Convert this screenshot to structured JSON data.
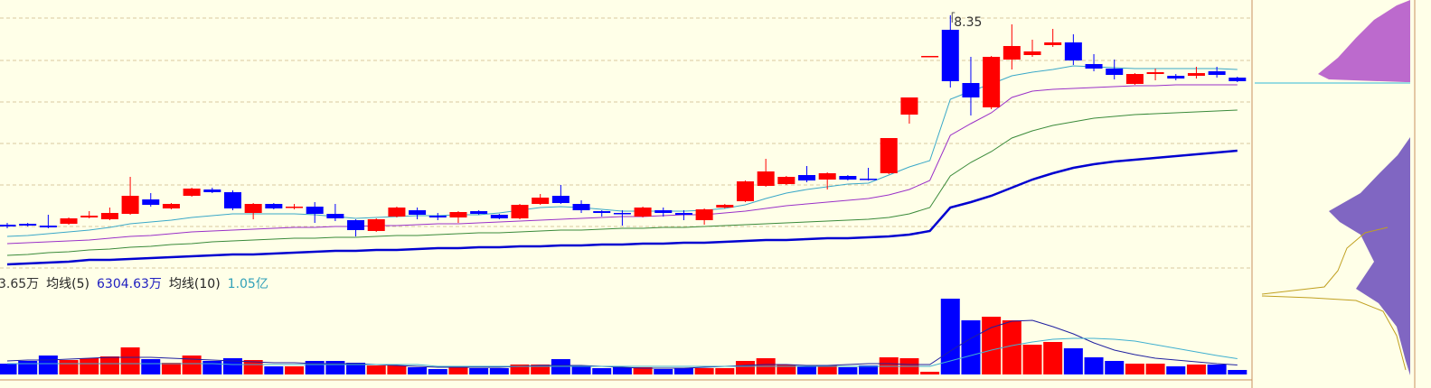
{
  "chart_data": {
    "type": "candlestick",
    "up_color": "#ff0000",
    "down_color": "#0000ff",
    "ylim": [
      5.47,
      8.52
    ],
    "grid_lines": [
      8.32,
      7.85,
      7.39,
      6.93,
      6.47,
      6.01,
      5.55
    ],
    "open": [
      6.03,
      6.04,
      6.02,
      6.04,
      6.11,
      6.09,
      6.15,
      6.31,
      6.21,
      6.35,
      6.42,
      6.39,
      6.16,
      6.26,
      6.22,
      6.23,
      6.15,
      6.08,
      5.96,
      6.12,
      6.19,
      6.13,
      6.11,
      6.18,
      6.14,
      6.1,
      6.26,
      6.35,
      6.26,
      6.18,
      6.16,
      6.12,
      6.19,
      6.16,
      6.08,
      6.22,
      6.29,
      6.46,
      6.48,
      6.58,
      6.53,
      6.57,
      6.54,
      6.6,
      7.25,
      7.9,
      8.19,
      7.6,
      7.33,
      7.86,
      7.91,
      8.02,
      8.05,
      7.81,
      7.76,
      7.59,
      7.7,
      7.68,
      7.68,
      7.73,
      7.66
    ],
    "high": [
      6.05,
      6.05,
      6.14,
      6.11,
      6.18,
      6.22,
      6.56,
      6.38,
      6.27,
      6.44,
      6.44,
      6.41,
      6.27,
      6.27,
      6.26,
      6.28,
      6.26,
      6.09,
      6.1,
      6.23,
      6.22,
      6.16,
      6.18,
      6.19,
      6.15,
      6.26,
      6.37,
      6.47,
      6.3,
      6.19,
      6.19,
      6.23,
      6.22,
      6.19,
      6.21,
      6.26,
      6.52,
      6.76,
      6.57,
      6.68,
      6.61,
      6.58,
      6.66,
      6.99,
      7.44,
      7.9,
      8.35,
      7.89,
      7.9,
      8.25,
      8.08,
      8.2,
      8.14,
      7.92,
      7.86,
      7.71,
      7.76,
      7.7,
      7.78,
      7.78,
      7.67
    ],
    "low": [
      5.99,
      6.01,
      5.99,
      6.03,
      6.1,
      6.08,
      6.14,
      6.23,
      6.2,
      6.34,
      6.38,
      6.19,
      6.09,
      6.2,
      6.2,
      6.05,
      6.07,
      5.9,
      5.95,
      6.11,
      6.09,
      6.08,
      6.05,
      6.14,
      6.09,
      6.09,
      6.25,
      6.26,
      6.16,
      6.12,
      6.02,
      6.11,
      6.12,
      6.08,
      6.03,
      6.21,
      6.28,
      6.45,
      6.47,
      6.5,
      6.42,
      6.52,
      6.52,
      6.59,
      7.15,
      7.9,
      7.55,
      7.24,
      7.31,
      7.75,
      7.89,
      8.0,
      7.8,
      7.73,
      7.64,
      7.58,
      7.63,
      7.63,
      7.65,
      7.66,
      7.61
    ],
    "close": [
      6.01,
      6.02,
      6.0,
      6.1,
      6.13,
      6.16,
      6.35,
      6.25,
      6.26,
      6.43,
      6.39,
      6.21,
      6.26,
      6.21,
      6.23,
      6.15,
      6.1,
      5.97,
      6.09,
      6.22,
      6.14,
      6.11,
      6.17,
      6.15,
      6.1,
      6.25,
      6.33,
      6.27,
      6.19,
      6.16,
      6.15,
      6.22,
      6.16,
      6.14,
      6.2,
      6.25,
      6.51,
      6.62,
      6.56,
      6.52,
      6.6,
      6.53,
      6.53,
      6.99,
      7.44,
      7.9,
      7.62,
      7.44,
      7.89,
      8.01,
      7.95,
      8.05,
      7.85,
      7.76,
      7.69,
      7.7,
      7.72,
      7.65,
      7.71,
      7.69,
      7.62
    ],
    "moving_averages": [
      {
        "color": "#3aa8c8",
        "width": 1,
        "values": [
          5.9,
          5.91,
          5.93,
          5.95,
          5.97,
          6.0,
          6.04,
          6.06,
          6.08,
          6.11,
          6.13,
          6.15,
          6.15,
          6.15,
          6.15,
          6.14,
          6.12,
          6.1,
          6.11,
          6.12,
          6.13,
          6.13,
          6.14,
          6.14,
          6.16,
          6.19,
          6.22,
          6.23,
          6.22,
          6.2,
          6.18,
          6.18,
          6.18,
          6.18,
          6.19,
          6.21,
          6.25,
          6.32,
          6.38,
          6.42,
          6.45,
          6.48,
          6.49,
          6.58,
          6.67,
          6.74,
          7.42,
          7.51,
          7.59,
          7.68,
          7.72,
          7.75,
          7.79,
          7.78,
          7.77,
          7.76,
          7.76,
          7.76,
          7.76,
          7.76,
          7.75
        ]
      },
      {
        "color": "#9a30c8",
        "width": 1,
        "values": [
          5.82,
          5.83,
          5.84,
          5.85,
          5.86,
          5.88,
          5.9,
          5.91,
          5.93,
          5.95,
          5.96,
          5.97,
          5.98,
          5.99,
          6.0,
          6.0,
          6.01,
          6.01,
          6.02,
          6.02,
          6.03,
          6.04,
          6.04,
          6.05,
          6.06,
          6.07,
          6.08,
          6.09,
          6.1,
          6.11,
          6.12,
          6.12,
          6.13,
          6.14,
          6.14,
          6.16,
          6.18,
          6.21,
          6.24,
          6.26,
          6.28,
          6.3,
          6.32,
          6.36,
          6.42,
          6.52,
          7.02,
          7.15,
          7.27,
          7.44,
          7.51,
          7.53,
          7.54,
          7.55,
          7.56,
          7.57,
          7.57,
          7.58,
          7.58,
          7.58,
          7.58
        ]
      },
      {
        "color": "#3a8a3a",
        "width": 1,
        "values": [
          5.69,
          5.7,
          5.72,
          5.73,
          5.75,
          5.76,
          5.78,
          5.79,
          5.81,
          5.82,
          5.84,
          5.85,
          5.86,
          5.87,
          5.88,
          5.88,
          5.89,
          5.89,
          5.9,
          5.91,
          5.91,
          5.92,
          5.93,
          5.94,
          5.94,
          5.95,
          5.96,
          5.97,
          5.97,
          5.98,
          5.99,
          5.99,
          6.0,
          6.0,
          6.01,
          6.02,
          6.03,
          6.04,
          6.05,
          6.06,
          6.07,
          6.08,
          6.09,
          6.11,
          6.15,
          6.22,
          6.57,
          6.72,
          6.84,
          6.99,
          7.07,
          7.13,
          7.17,
          7.21,
          7.23,
          7.25,
          7.26,
          7.27,
          7.28,
          7.29,
          7.3
        ]
      },
      {
        "color": "#0000d0",
        "width": 2.5,
        "values": [
          5.59,
          5.6,
          5.61,
          5.62,
          5.64,
          5.64,
          5.65,
          5.66,
          5.67,
          5.68,
          5.69,
          5.7,
          5.7,
          5.71,
          5.72,
          5.73,
          5.74,
          5.74,
          5.75,
          5.75,
          5.76,
          5.77,
          5.77,
          5.78,
          5.78,
          5.79,
          5.79,
          5.8,
          5.8,
          5.81,
          5.81,
          5.82,
          5.82,
          5.83,
          5.83,
          5.84,
          5.85,
          5.86,
          5.86,
          5.87,
          5.88,
          5.88,
          5.89,
          5.9,
          5.92,
          5.96,
          6.22,
          6.28,
          6.35,
          6.44,
          6.53,
          6.6,
          6.66,
          6.7,
          6.73,
          6.75,
          6.77,
          6.79,
          6.81,
          6.83,
          6.85
        ]
      }
    ],
    "volume": {
      "ylim": [
        0,
        54000
      ],
      "values": [
        7200,
        9000,
        12600,
        9600,
        10800,
        12000,
        18000,
        10200,
        7800,
        12600,
        9000,
        10800,
        9600,
        5400,
        5400,
        9000,
        9000,
        7800,
        6000,
        6000,
        4800,
        3600,
        4800,
        4200,
        4200,
        6600,
        6600,
        10200,
        5400,
        4200,
        4800,
        4800,
        3600,
        4200,
        4200,
        4200,
        9000,
        10800,
        6600,
        5400,
        6000,
        4800,
        6000,
        11400,
        10800,
        1800,
        50400,
        36000,
        38400,
        36000,
        19800,
        21600,
        17400,
        11400,
        9000,
        7200,
        7200,
        5400,
        6600,
        6600,
        3000
      ],
      "moving_averages": [
        {
          "color": "#2020a0",
          "values": [
            9000,
            9600,
            9600,
            10200,
            10800,
            11400,
            11400,
            11400,
            10800,
            10200,
            9600,
            9000,
            8400,
            7800,
            7800,
            7200,
            7200,
            7200,
            6600,
            6000,
            5400,
            4800,
            4800,
            4800,
            4800,
            5400,
            6000,
            6000,
            6000,
            5400,
            4800,
            4200,
            4200,
            4200,
            4800,
            5400,
            6000,
            6600,
            6600,
            6000,
            6000,
            6600,
            7200,
            7200,
            6600,
            6600,
            15600,
            24000,
            31200,
            35400,
            36000,
            31800,
            27000,
            21000,
            16200,
            13200,
            10800,
            9600,
            8400,
            7200,
            6304.63
          ]
        },
        {
          "color": "#40b0d0",
          "values": [
            7200,
            7200,
            7200,
            7200,
            7200,
            7200,
            7200,
            7200,
            7200,
            7200,
            7200,
            6600,
            6600,
            6600,
            6600,
            6600,
            6600,
            6600,
            6600,
            6600,
            6600,
            5400,
            5400,
            5400,
            5400,
            5400,
            5400,
            5400,
            5400,
            5400,
            5400,
            5400,
            5400,
            5400,
            5400,
            5400,
            5400,
            5400,
            5400,
            5400,
            5400,
            5400,
            5400,
            5400,
            5400,
            5400,
            9000,
            12600,
            16200,
            19200,
            21600,
            23400,
            24000,
            24000,
            23400,
            22200,
            19800,
            17400,
            15000,
            12600,
            10500
          ]
        }
      ],
      "labels": [
        {
          "text": "3.65万",
          "color": "#333333"
        },
        {
          "text": "均线(5)",
          "color": "#222222"
        },
        {
          "text": "6304.63万",
          "color": "#2020c0"
        },
        {
          "text": "均线(10)",
          "color": "#222222"
        },
        {
          "text": "1.05亿",
          "color": "#30a0b8"
        }
      ]
    }
  }
}
